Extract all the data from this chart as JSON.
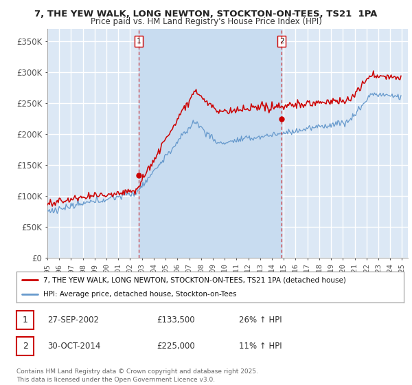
{
  "title_line1": "7, THE YEW WALK, LONG NEWTON, STOCKTON-ON-TEES, TS21  1PA",
  "title_line2": "Price paid vs. HM Land Registry's House Price Index (HPI)",
  "ylabel_ticks": [
    "£0",
    "£50K",
    "£100K",
    "£150K",
    "£200K",
    "£250K",
    "£300K",
    "£350K"
  ],
  "ytick_vals": [
    0,
    50000,
    100000,
    150000,
    200000,
    250000,
    300000,
    350000
  ],
  "ylim": [
    0,
    370000
  ],
  "xlim_start": 1995.0,
  "xlim_end": 2025.5,
  "xticks": [
    1995,
    1996,
    1997,
    1998,
    1999,
    2000,
    2001,
    2002,
    2003,
    2004,
    2005,
    2006,
    2007,
    2008,
    2009,
    2010,
    2011,
    2012,
    2013,
    2014,
    2015,
    2016,
    2017,
    2018,
    2019,
    2020,
    2021,
    2022,
    2023,
    2024,
    2025
  ],
  "fig_bg_color": "#ffffff",
  "plot_bg_color": "#dce8f5",
  "grid_color": "#ffffff",
  "shade_color": "#c8dcf0",
  "red_line_color": "#cc0000",
  "blue_line_color": "#6699cc",
  "vline_color": "#cc0000",
  "marker1_x": 2002.74,
  "marker1_y": 133500,
  "marker2_x": 2014.83,
  "marker2_y": 225000,
  "legend_red": "7, THE YEW WALK, LONG NEWTON, STOCKTON-ON-TEES, TS21 1PA (detached house)",
  "legend_blue": "HPI: Average price, detached house, Stockton-on-Tees",
  "table_row1": [
    "1",
    "27-SEP-2002",
    "£133,500",
    "26% ↑ HPI"
  ],
  "table_row2": [
    "2",
    "30-OCT-2014",
    "£225,000",
    "11% ↑ HPI"
  ],
  "footer": "Contains HM Land Registry data © Crown copyright and database right 2025.\nThis data is licensed under the Open Government Licence v3.0."
}
